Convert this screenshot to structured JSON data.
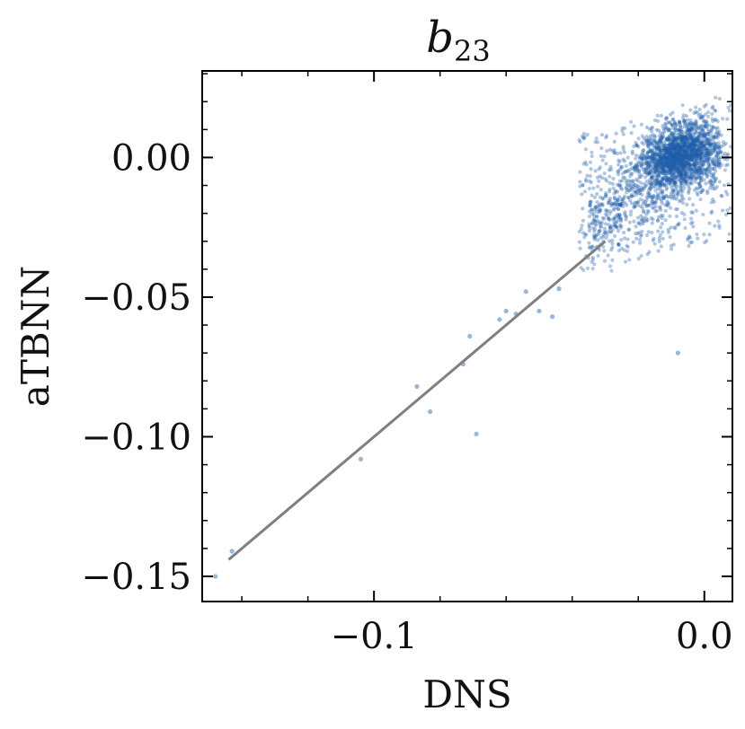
{
  "chart_data": {
    "type": "scatter",
    "title_base": "b",
    "title_sub": "23",
    "xlabel": "DNS",
    "ylabel": "aTBNN",
    "xlim": [
      -0.152,
      0.0085
    ],
    "ylim": [
      -0.159,
      0.031
    ],
    "xticks": [
      {
        "value": -0.1,
        "label": "−0.1"
      },
      {
        "value": 0.0,
        "label": "0.0"
      }
    ],
    "yticks": [
      {
        "value": 0.0,
        "label": "0.00"
      },
      {
        "value": -0.05,
        "label": "−0.05"
      },
      {
        "value": -0.1,
        "label": "−0.10"
      },
      {
        "value": -0.15,
        "label": "−0.15"
      }
    ],
    "grid": false,
    "legend": "none",
    "point_color": "#1f5fa8",
    "line_color": "#7f7f7f",
    "reference_line": {
      "x": [
        -0.144,
        -0.03
      ],
      "y": [
        -0.144,
        -0.03
      ]
    },
    "cluster": {
      "x_range": [
        -0.045,
        0.008
      ],
      "y_range": [
        -0.05,
        0.022
      ],
      "approx_points": 2600
    },
    "points": [
      {
        "x": -0.148,
        "y": -0.15
      },
      {
        "x": -0.143,
        "y": -0.141
      },
      {
        "x": -0.104,
        "y": -0.108
      },
      {
        "x": -0.087,
        "y": -0.082
      },
      {
        "x": -0.083,
        "y": -0.091
      },
      {
        "x": -0.073,
        "y": -0.074
      },
      {
        "x": -0.071,
        "y": -0.064
      },
      {
        "x": -0.069,
        "y": -0.099
      },
      {
        "x": -0.062,
        "y": -0.058
      },
      {
        "x": -0.06,
        "y": -0.055
      },
      {
        "x": -0.057,
        "y": -0.056
      },
      {
        "x": -0.054,
        "y": -0.048
      },
      {
        "x": -0.05,
        "y": -0.055
      },
      {
        "x": -0.046,
        "y": -0.057
      },
      {
        "x": -0.044,
        "y": -0.047
      },
      {
        "x": -0.008,
        "y": -0.07
      }
    ]
  }
}
